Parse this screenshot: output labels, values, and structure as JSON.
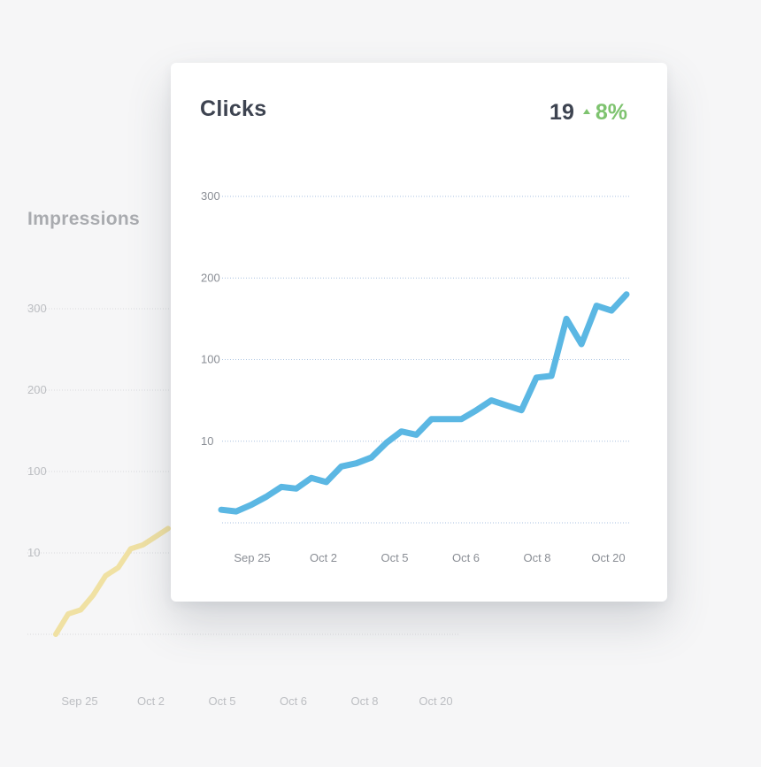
{
  "background_panel": {
    "title": "Impressions",
    "chart_data": {
      "type": "line",
      "title": "Impressions",
      "y_ticks": [
        "300",
        "200",
        "100",
        "10"
      ],
      "x_ticks": [
        "Sep 25",
        "Oct 2",
        "Oct 5",
        "Oct 6",
        "Oct 8",
        "Oct 20"
      ],
      "x": [
        0,
        1,
        2,
        3,
        4,
        5,
        6,
        7,
        8,
        9
      ],
      "series": [
        {
          "values": [
            0.0,
            0.25,
            0.3,
            0.48,
            0.72,
            0.82,
            1.05,
            1.1,
            1.2,
            1.3
          ]
        }
      ],
      "color": "#f0e1a3",
      "grid": true
    }
  },
  "card": {
    "title": "Clicks",
    "kpi_value": "19",
    "kpi_delta": "8%",
    "kpi_color": "#7ec36f",
    "chart_data": {
      "type": "line",
      "title": "Clicks",
      "y_ticks": [
        "300",
        "200",
        "100",
        "10"
      ],
      "x_ticks": [
        "Sep 25",
        "Oct 2",
        "Oct 5",
        "Oct 6",
        "Oct 8",
        "Oct 20"
      ],
      "x": [
        0,
        1,
        2,
        3,
        4,
        5,
        6,
        7,
        8,
        9,
        10,
        11,
        12,
        13,
        14,
        15,
        16,
        17,
        18,
        19,
        20,
        21,
        22,
        23,
        24,
        25,
        26,
        27
      ],
      "series": [
        {
          "values": [
            0.16,
            0.14,
            0.22,
            0.32,
            0.44,
            0.42,
            0.55,
            0.5,
            0.69,
            0.73,
            0.8,
            0.98,
            1.12,
            1.08,
            1.27,
            1.27,
            1.27,
            1.38,
            1.5,
            1.44,
            1.38,
            1.78,
            1.8,
            2.5,
            2.19,
            2.66,
            2.6,
            2.8
          ]
        }
      ],
      "color": "#5bb7e3",
      "grid": true
    }
  }
}
